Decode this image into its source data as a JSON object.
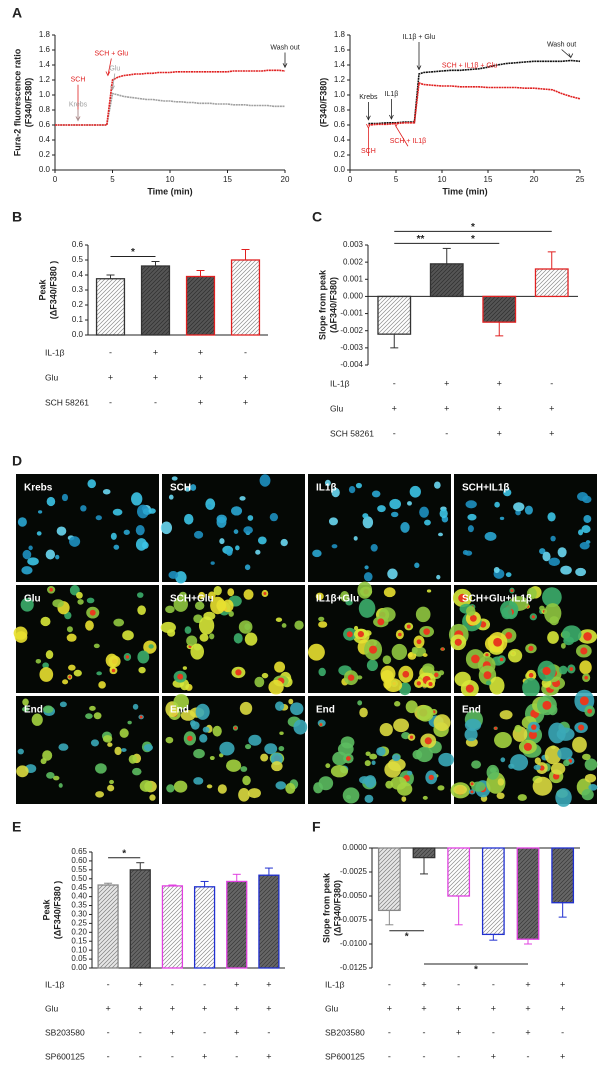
{
  "chart_data": [
    {
      "type": "line",
      "panel": "A",
      "ylabel_lines": [
        "Fura-2 fluorescence ratio",
        "(F340/F380)"
      ],
      "xlabel": "Time (min)",
      "xlim": [
        0,
        20
      ],
      "xticks": [
        0,
        5,
        10,
        15,
        20
      ],
      "ylim": [
        0,
        1.8
      ],
      "yticks": [
        {
          "value": 0,
          "label": "0.0"
        },
        0.2,
        0.4,
        0.6,
        0.8,
        {
          "value": 1,
          "label": "1.0"
        },
        1.2,
        1.4,
        1.6,
        1.8
      ],
      "x": [
        0,
        0.5,
        1,
        1.5,
        2,
        2.5,
        3,
        3.5,
        4,
        4.5,
        5,
        5.5,
        6,
        6.5,
        7,
        7.5,
        8,
        8.5,
        9,
        9.5,
        10,
        10.5,
        11,
        11.5,
        12,
        12.5,
        13,
        13.5,
        14,
        14.5,
        15,
        15.5,
        16,
        16.5,
        17,
        17.5,
        18,
        18.5,
        19,
        19.5,
        20
      ],
      "series": [
        {
          "color": "#a0a0a0",
          "values": [
            0.6,
            0.6,
            0.6,
            0.6,
            0.6,
            0.6,
            0.6,
            0.6,
            0.6,
            0.6,
            1.02,
            1.0,
            0.98,
            0.97,
            0.96,
            0.95,
            0.94,
            0.94,
            0.93,
            0.92,
            0.92,
            0.91,
            0.91,
            0.9,
            0.9,
            0.89,
            0.89,
            0.89,
            0.88,
            0.88,
            0.88,
            0.87,
            0.87,
            0.87,
            0.86,
            0.86,
            0.86,
            0.86,
            0.85,
            0.85,
            0.85
          ]
        },
        {
          "color": "#e02020",
          "values": [
            0.6,
            0.6,
            0.6,
            0.6,
            0.6,
            0.6,
            0.6,
            0.6,
            0.6,
            0.6,
            1.2,
            1.24,
            1.26,
            1.27,
            1.28,
            1.28,
            1.29,
            1.29,
            1.3,
            1.3,
            1.3,
            1.31,
            1.31,
            1.31,
            1.31,
            1.31,
            1.31,
            1.31,
            1.31,
            1.31,
            1.31,
            1.32,
            1.32,
            1.32,
            1.32,
            1.32,
            1.32,
            1.33,
            1.33,
            1.33,
            1.32
          ]
        }
      ],
      "annotations": [
        {
          "text": "SCH",
          "color": "#e02020"
        },
        {
          "text": "SCH + Glu",
          "color": "#e02020"
        },
        {
          "text": "Glu",
          "color": "#a0a0a0"
        },
        {
          "text": "Krebs",
          "color": "#a0a0a0"
        },
        {
          "text": "Wash out",
          "color": "#222222"
        }
      ]
    },
    {
      "type": "line",
      "ylabel_lines": [
        "(F340/F380)"
      ],
      "xlabel": "Time (min)",
      "xlim": [
        0,
        25
      ],
      "xticks": [
        0,
        5,
        10,
        15,
        20,
        25
      ],
      "ylim": [
        0,
        1.8
      ],
      "yticks": [
        {
          "value": 0,
          "label": "0.0"
        },
        0.2,
        0.4,
        0.6,
        0.8,
        {
          "value": 1,
          "label": "1.0"
        },
        1.2,
        1.4,
        1.6,
        1.8
      ],
      "x": [
        2,
        3,
        4,
        5,
        6,
        7,
        7.5,
        8,
        9,
        10,
        11,
        12,
        13,
        14,
        15,
        16,
        17,
        18,
        19,
        20,
        21,
        22,
        23,
        24,
        25
      ],
      "series": [
        {
          "color": "#111111",
          "values": [
            0.62,
            0.62,
            0.63,
            0.63,
            0.64,
            0.64,
            1.28,
            1.3,
            1.31,
            1.32,
            1.33,
            1.33,
            1.34,
            1.35,
            1.37,
            1.4,
            1.42,
            1.43,
            1.44,
            1.45,
            1.45,
            1.45,
            1.45,
            1.46,
            1.45
          ]
        },
        {
          "color": "#e02020",
          "values": [
            0.6,
            0.61,
            0.61,
            0.62,
            0.63,
            0.63,
            1.16,
            1.14,
            1.13,
            1.12,
            1.12,
            1.11,
            1.11,
            1.11,
            1.1,
            1.1,
            1.1,
            1.1,
            1.09,
            1.09,
            1.08,
            1.07,
            1.02,
            0.98,
            0.95
          ]
        }
      ],
      "annotations": [
        {
          "text": "IL1β + Glu",
          "color": "#222222"
        },
        {
          "text": "SCH + IL1β + Glu",
          "color": "#e02020"
        },
        {
          "text": "Wash out",
          "color": "#222222"
        },
        {
          "text": "Krebs",
          "color": "#222222"
        },
        {
          "text": "IL1β",
          "color": "#222222"
        },
        {
          "text": "SCH",
          "color": "#e02020"
        },
        {
          "text": "SCH + IL1β",
          "color": "#e02020"
        }
      ]
    },
    {
      "type": "bar",
      "panel": "B",
      "ylabel_lines": [
        "Peak",
        "(ΔF340/F380 )"
      ],
      "categories": [
        null,
        null,
        null,
        null
      ],
      "values": [
        0.375,
        0.46,
        0.39,
        0.5
      ],
      "errors": [
        0.025,
        0.03,
        0.04,
        0.07
      ],
      "colors": [
        "#ffffff",
        "#555555",
        "#555555",
        "#ffffff"
      ],
      "edge_colors": [
        "#333333",
        "#333333",
        "#e02020",
        "#e02020"
      ],
      "ylim": [
        0,
        0.6
      ],
      "yticks": [
        {
          "value": 0,
          "label": "0.0"
        },
        0.1,
        0.2,
        0.3,
        0.4,
        0.5,
        0.6
      ],
      "significance": [
        {
          "from": 0,
          "to": 1,
          "label": "*"
        }
      ],
      "treatments": [
        {
          "name": "IL-1β",
          "signs": [
            "-",
            "+",
            "+",
            "-"
          ]
        },
        {
          "name": "Glu",
          "signs": [
            "+",
            "+",
            "+",
            "+"
          ]
        },
        {
          "name": "SCH 58261",
          "signs": [
            "-",
            "-",
            "+",
            "+"
          ]
        }
      ]
    },
    {
      "type": "bar",
      "panel": "C",
      "ylabel_lines": [
        "Slope from peak",
        "(ΔF340/F380)"
      ],
      "categories": [
        null,
        null,
        null,
        null
      ],
      "values": [
        -0.0022,
        0.0019,
        -0.0015,
        0.0016
      ],
      "errors": [
        0.0008,
        0.0009,
        0.0008,
        0.001
      ],
      "colors": [
        "#ffffff",
        "#555555",
        "#555555",
        "#ffffff"
      ],
      "edge_colors": [
        "#333333",
        "#333333",
        "#e02020",
        "#e02020"
      ],
      "ylim": [
        -0.004,
        0.003
      ],
      "yticks": [
        -0.004,
        -0.003,
        -0.002,
        -0.001,
        {
          "value": 0,
          "label": "0.000"
        },
        0.001,
        0.002,
        0.003
      ],
      "significance": [
        {
          "from": 0,
          "to": 1,
          "label": "**"
        },
        {
          "from": 1,
          "to": 2,
          "label": "*"
        },
        {
          "from": 0,
          "to": 3,
          "label": "*"
        }
      ],
      "treatments": [
        {
          "name": "IL-1β",
          "signs": [
            "-",
            "+",
            "+",
            "-"
          ]
        },
        {
          "name": "Glu",
          "signs": [
            "+",
            "+",
            "+",
            "+"
          ]
        },
        {
          "name": "SCH 58261",
          "signs": [
            "-",
            "-",
            "+",
            "+"
          ]
        }
      ]
    },
    {
      "type": "bar",
      "panel": "E",
      "ylabel_lines": [
        "Peak",
        "(ΔF340/F380 )"
      ],
      "categories": [
        null,
        null,
        null,
        null,
        null,
        null
      ],
      "values": [
        0.465,
        0.55,
        0.46,
        0.455,
        0.485,
        0.52
      ],
      "errors": [
        0.01,
        0.04,
        0.005,
        0.03,
        0.04,
        0.04
      ],
      "colors": [
        "#e6e6e6",
        "#666666",
        "#ffffff",
        "#ffffff",
        "#666666",
        "#666666"
      ],
      "edge_colors": [
        "#888888",
        "#333333",
        "#e040e0",
        "#2030d0",
        "#e040e0",
        "#2030d0"
      ],
      "ylim": [
        0,
        0.65
      ],
      "yticks": [
        {
          "value": 0,
          "label": "0.00"
        },
        0.05,
        {
          "value": 0.1,
          "label": "0.10"
        },
        0.15,
        {
          "value": 0.2,
          "label": "0.20"
        },
        0.25,
        {
          "value": 0.3,
          "label": "0.30"
        },
        0.35,
        {
          "value": 0.4,
          "label": "0.40"
        },
        0.45,
        {
          "value": 0.5,
          "label": "0.50"
        },
        0.55,
        {
          "value": 0.6,
          "label": "0.60"
        },
        0.65
      ],
      "significance": [
        {
          "from": 0,
          "to": 1,
          "label": "*"
        }
      ],
      "treatments": [
        {
          "name": "IL-1β",
          "signs": [
            "-",
            "+",
            "-",
            "-",
            "+",
            "+"
          ]
        },
        {
          "name": "Glu",
          "signs": [
            "+",
            "+",
            "+",
            "+",
            "+",
            "+"
          ]
        },
        {
          "name": "SB203580",
          "signs": [
            "-",
            "-",
            "+",
            "-",
            "+",
            "-"
          ]
        },
        {
          "name": "SP600125",
          "signs": [
            "-",
            "-",
            "-",
            "+",
            "-",
            "+"
          ]
        }
      ]
    },
    {
      "type": "bar",
      "panel": "F",
      "ylabel_lines": [
        "Slope from peak",
        "(ΔF340/F380)"
      ],
      "categories": [
        null,
        null,
        null,
        null,
        null,
        null
      ],
      "values": [
        -0.0065,
        -0.001,
        -0.005,
        -0.009,
        -0.0095,
        -0.0057
      ],
      "errors": [
        0.0015,
        0.0017,
        0.003,
        0.0006,
        0.0005,
        0.0015
      ],
      "colors": [
        "#e6e6e6",
        "#666666",
        "#ffffff",
        "#ffffff",
        "#666666",
        "#666666"
      ],
      "edge_colors": [
        "#888888",
        "#333333",
        "#e040e0",
        "#2030d0",
        "#e040e0",
        "#2030d0"
      ],
      "ylim": [
        -0.0125,
        0
      ],
      "yticks": [
        -0.0125,
        {
          "value": -0.01,
          "label": "-0.0100"
        },
        -0.0075,
        {
          "value": -0.005,
          "label": "-0.0050"
        },
        -0.0025,
        {
          "value": 0,
          "label": "0.0000"
        }
      ],
      "significance": [
        {
          "from": 0,
          "to": 1,
          "label": "*"
        },
        {
          "from": 1,
          "to": 4,
          "label": "*"
        }
      ],
      "treatments": [
        {
          "name": "IL-1β",
          "signs": [
            "-",
            "+",
            "-",
            "-",
            "+",
            "+"
          ]
        },
        {
          "name": "Glu",
          "signs": [
            "+",
            "+",
            "+",
            "+",
            "+",
            "+"
          ]
        },
        {
          "name": "SB203580",
          "signs": [
            "-",
            "-",
            "+",
            "-",
            "+",
            "-"
          ]
        },
        {
          "name": "SP600125",
          "signs": [
            "-",
            "-",
            "-",
            "+",
            "-",
            "+"
          ]
        }
      ]
    }
  ],
  "image_panel": {
    "panel": "D",
    "tiles": [
      [
        "Krebs",
        "SCH",
        "IL1β",
        "SCH+IL1β"
      ],
      [
        "Glu",
        "SCH+Glu",
        "IL1β+Glu",
        "SCH+Glu+IL1β"
      ],
      [
        "End",
        "End",
        "End",
        "End"
      ]
    ]
  }
}
